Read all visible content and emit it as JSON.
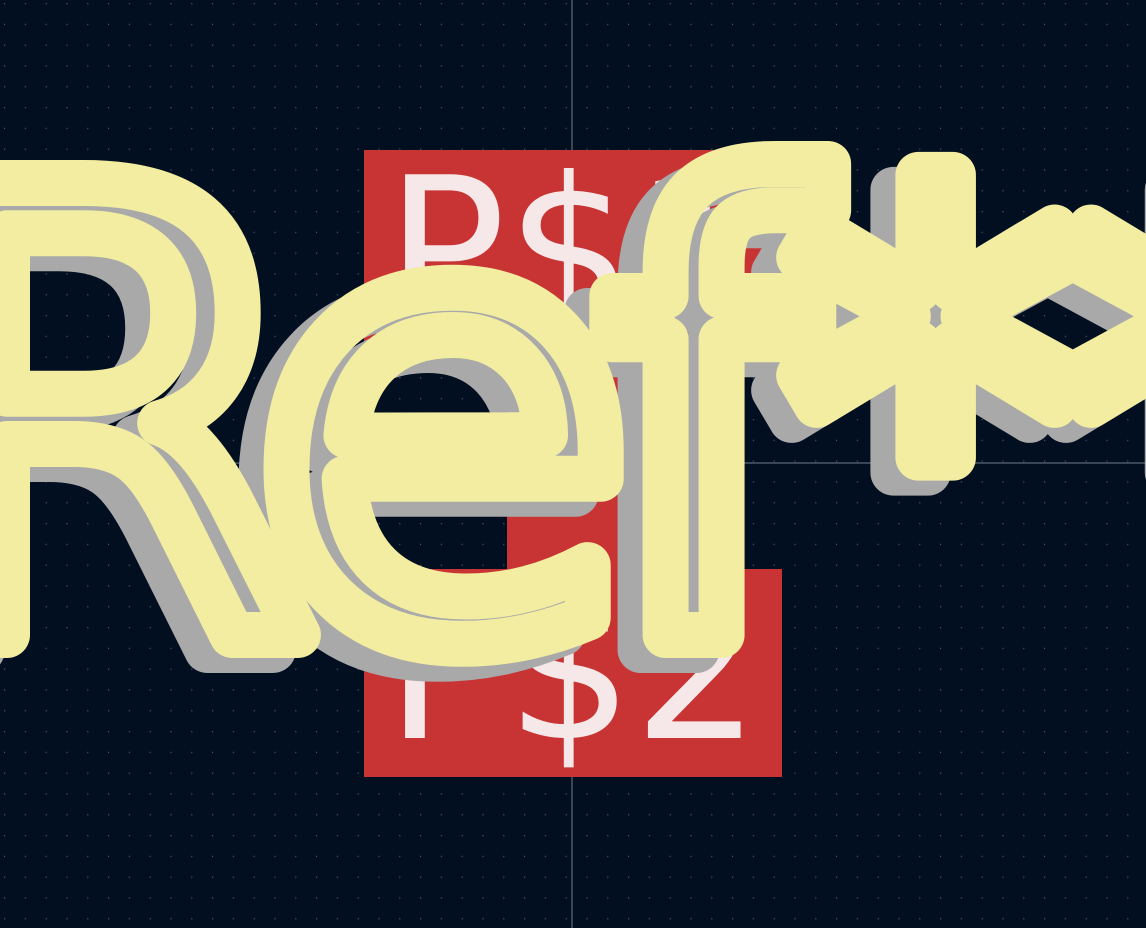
{
  "footprint": {
    "reference": "Ref**",
    "pads": [
      {
        "label": "P$1"
      },
      {
        "label": "P$2"
      }
    ]
  }
}
